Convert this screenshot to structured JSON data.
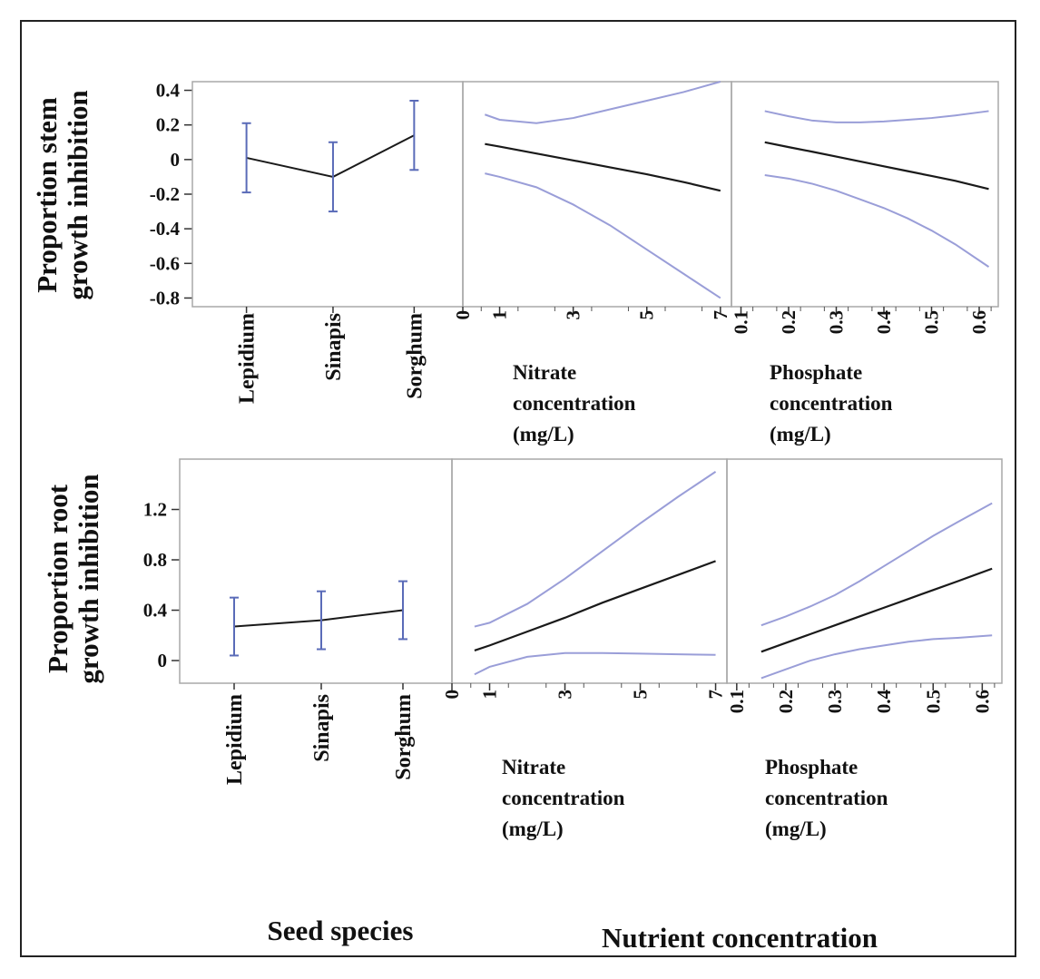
{
  "chart_data": [
    {
      "type": "line",
      "row": "stem",
      "ylabel_lines": [
        "Proportion stem",
        "growth inhibition"
      ],
      "ylim": [
        -0.85,
        0.45
      ],
      "yticks": [
        "0.4",
        "0.2",
        "0",
        "-0.2",
        "-0.4",
        "-0.6",
        "-0.8"
      ],
      "yvalues": [
        0.4,
        0.2,
        0,
        -0.2,
        -0.4,
        -0.6,
        -0.8
      ],
      "panels": [
        {
          "kind": "categorical",
          "xlabel_lines": [],
          "categories": [
            "Lepidium",
            "Sinapis",
            "Sorghum"
          ],
          "means": [
            0.01,
            -0.1,
            0.14
          ],
          "lower": [
            -0.19,
            -0.3,
            -0.06
          ],
          "upper": [
            0.21,
            0.1,
            0.34
          ]
        },
        {
          "kind": "continuous",
          "xlabel_lines": [
            "Nitrate",
            "concentration",
            "(mg/L)"
          ],
          "xlim": [
            0,
            7.3
          ],
          "xticks": [
            "0",
            "1",
            "3",
            "5",
            "7"
          ],
          "xtick_values": [
            0,
            1,
            3,
            5,
            7
          ],
          "x": [
            0.6,
            1.0,
            2.0,
            3.0,
            4.0,
            5.0,
            6.0,
            7.0
          ],
          "fit": [
            0.09,
            0.075,
            0.035,
            -0.005,
            -0.045,
            -0.085,
            -0.13,
            -0.18
          ],
          "upper": [
            0.26,
            0.23,
            0.21,
            0.24,
            0.29,
            0.34,
            0.39,
            0.45
          ],
          "lower": [
            -0.08,
            -0.1,
            -0.16,
            -0.26,
            -0.38,
            -0.52,
            -0.66,
            -0.8
          ]
        },
        {
          "kind": "continuous",
          "xlabel_lines": [
            "Phosphate",
            "concentration",
            "(mg/L)"
          ],
          "xlim": [
            0.08,
            0.64
          ],
          "xticks": [
            "0.1",
            "0.2",
            "0.3",
            "0.4",
            "0.5",
            "0.6"
          ],
          "xtick_values": [
            0.1,
            0.2,
            0.3,
            0.4,
            0.5,
            0.6
          ],
          "x": [
            0.15,
            0.2,
            0.25,
            0.3,
            0.35,
            0.4,
            0.45,
            0.5,
            0.55,
            0.62
          ],
          "fit": [
            0.1,
            0.072,
            0.045,
            0.017,
            -0.011,
            -0.039,
            -0.067,
            -0.095,
            -0.123,
            -0.17
          ],
          "upper": [
            0.28,
            0.25,
            0.225,
            0.215,
            0.215,
            0.22,
            0.23,
            0.24,
            0.255,
            0.28
          ],
          "lower": [
            -0.09,
            -0.11,
            -0.14,
            -0.18,
            -0.23,
            -0.28,
            -0.34,
            -0.41,
            -0.49,
            -0.62
          ]
        }
      ]
    },
    {
      "type": "line",
      "row": "root",
      "ylabel_lines": [
        "Proportion root",
        "growth inhibition"
      ],
      "ylim": [
        -0.18,
        1.6
      ],
      "yticks": [
        "1.2",
        "0.8",
        "0.4",
        "0"
      ],
      "yvalues": [
        1.2,
        0.8,
        0.4,
        0
      ],
      "panels": [
        {
          "kind": "categorical",
          "xlabel_lines": [],
          "categories": [
            "Lepidium",
            "Sinapis",
            "Sorghum"
          ],
          "means": [
            0.27,
            0.32,
            0.4
          ],
          "lower": [
            0.04,
            0.09,
            0.17
          ],
          "upper": [
            0.5,
            0.55,
            0.63
          ]
        },
        {
          "kind": "continuous",
          "xlabel_lines": [
            "Nitrate",
            "concentration",
            "(mg/L)"
          ],
          "xlim": [
            0,
            7.3
          ],
          "xticks": [
            "0",
            "1",
            "3",
            "5",
            "7"
          ],
          "xtick_values": [
            0,
            1,
            3,
            5,
            7
          ],
          "x": [
            0.6,
            1.0,
            2.0,
            3.0,
            4.0,
            5.0,
            6.0,
            7.0
          ],
          "fit": [
            0.08,
            0.12,
            0.23,
            0.34,
            0.46,
            0.57,
            0.68,
            0.79
          ],
          "upper": [
            0.27,
            0.3,
            0.45,
            0.65,
            0.87,
            1.09,
            1.3,
            1.5
          ],
          "lower": [
            -0.11,
            -0.05,
            0.03,
            0.06,
            0.06,
            0.055,
            0.05,
            0.045
          ]
        },
        {
          "kind": "continuous",
          "xlabel_lines": [
            "Phosphate",
            "concentration",
            "(mg/L)"
          ],
          "xlim": [
            0.08,
            0.64
          ],
          "xticks": [
            "0.1",
            "0.2",
            "0.3",
            "0.4",
            "0.5",
            "0.6"
          ],
          "xtick_values": [
            0.1,
            0.2,
            0.3,
            0.4,
            0.5,
            0.6
          ],
          "x": [
            0.15,
            0.2,
            0.25,
            0.3,
            0.35,
            0.4,
            0.45,
            0.5,
            0.55,
            0.62
          ],
          "fit": [
            0.07,
            0.14,
            0.21,
            0.28,
            0.35,
            0.42,
            0.49,
            0.56,
            0.63,
            0.73
          ],
          "upper": [
            0.28,
            0.35,
            0.43,
            0.52,
            0.63,
            0.75,
            0.87,
            0.99,
            1.1,
            1.25
          ],
          "lower": [
            -0.14,
            -0.07,
            0.0,
            0.05,
            0.09,
            0.12,
            0.15,
            0.17,
            0.18,
            0.2
          ]
        }
      ]
    }
  ],
  "bottom_labels": {
    "left": "Seed species",
    "right": "Nutrient concentration"
  },
  "colors": {
    "fit_line": "#1a1a1a",
    "ci_line": "#9a9ed8",
    "error_bar": "#5a6bb8",
    "frame": "#a8a8a8"
  }
}
